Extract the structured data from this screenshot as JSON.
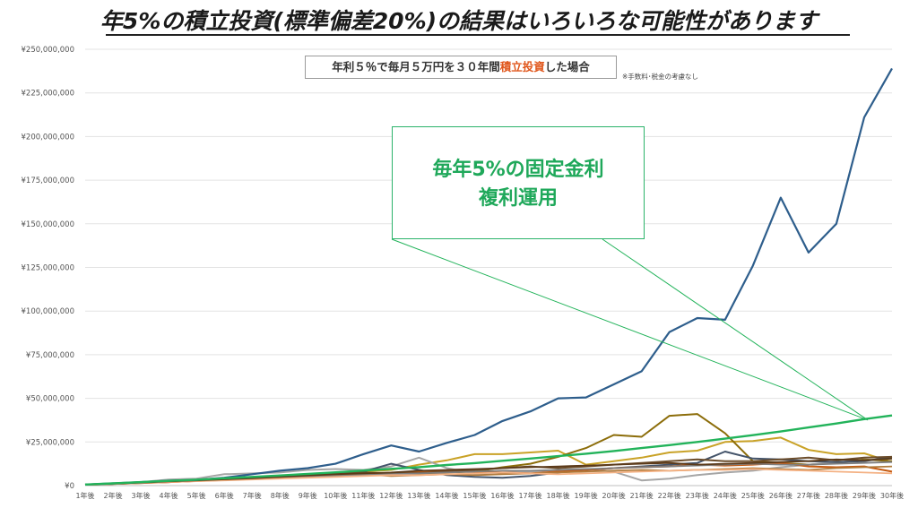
{
  "title": "年5%の積立投資(標準偏差20%)の結果はいろいろな可能性があります",
  "subtitle": {
    "part1": "年利５％で毎月５万円を３０年間",
    "highlight": "積立投資",
    "part2": "した場合"
  },
  "note": "※手数料･税金の考慮なし",
  "callout": {
    "line1": "毎年5%の固定金利",
    "line2": "複利運用"
  },
  "colors": {
    "highlight": "#e0561b",
    "fixed_rate_line": "#22b35a",
    "callout_text": "#1fa85a"
  },
  "chart_data": {
    "type": "line",
    "x": [
      "1年後",
      "2年後",
      "3年後",
      "4年後",
      "5年後",
      "6年後",
      "7年後",
      "8年後",
      "9年後",
      "10年後",
      "11年後",
      "12年後",
      "13年後",
      "14年後",
      "15年後",
      "16年後",
      "17年後",
      "18年後",
      "19年後",
      "20年後",
      "21年後",
      "22年後",
      "23年後",
      "24年後",
      "25年後",
      "26年後",
      "27年後",
      "28年後",
      "29年後",
      "30年後"
    ],
    "ylim": [
      0,
      250000000
    ],
    "yticks": [
      "¥0",
      "¥25,000,000",
      "¥50,000,000",
      "¥75,000,000",
      "¥100,000,000",
      "¥125,000,000",
      "¥150,000,000",
      "¥175,000,000",
      "¥200,000,000",
      "¥225,000,000",
      "¥250,000,000"
    ],
    "grid": true,
    "legend": "none",
    "series": [
      {
        "color": "#2e5e8c",
        "width": 2.2,
        "values": [
          0.6,
          1.3,
          2.0,
          2.8,
          3.3,
          4.5,
          6.5,
          8.5,
          10,
          12.5,
          18,
          23,
          19.5,
          24.5,
          29,
          37,
          42.5,
          50,
          50.5,
          58,
          65.5,
          88,
          96,
          95,
          126,
          165,
          133.5,
          150,
          211,
          239
        ]
      },
      {
        "color": "#22b35a",
        "width": 2.4,
        "values": [
          0.6,
          1.3,
          2.0,
          2.7,
          3.4,
          4.2,
          5.0,
          5.8,
          6.7,
          7.6,
          8.6,
          9.6,
          10.6,
          11.8,
          12.9,
          14.2,
          15.5,
          16.9,
          18.3,
          19.8,
          21.5,
          23.2,
          25.0,
          26.9,
          28.9,
          31.0,
          33.3,
          35.6,
          38.1,
          40.2
        ]
      },
      {
        "color": "#c9a227",
        "width": 2,
        "values": [
          0.5,
          1.1,
          1.8,
          2.2,
          2.8,
          3.8,
          4.5,
          5.5,
          6.5,
          7.2,
          8,
          9,
          12,
          14.5,
          18,
          18,
          19,
          20,
          12,
          14,
          16,
          19,
          20,
          25,
          25.5,
          27.5,
          20.5,
          18,
          18.5,
          13.5
        ]
      },
      {
        "color": "#8c6d0a",
        "width": 2,
        "values": [
          0.5,
          1.0,
          1.5,
          2.0,
          2.7,
          3.3,
          4.0,
          5.0,
          5.8,
          6.5,
          7.2,
          6.0,
          6.8,
          7.5,
          8.0,
          10.5,
          12.5,
          16.5,
          21.5,
          29,
          28,
          40,
          41,
          30,
          14,
          13,
          12,
          13,
          15,
          14
        ]
      },
      {
        "color": "#a6a6a6",
        "width": 2,
        "values": [
          0.6,
          1.2,
          2.0,
          3.5,
          4.0,
          6.5,
          7.0,
          7.5,
          9.0,
          9.5,
          9.0,
          11.0,
          16.0,
          10.0,
          7.0,
          7.5,
          8.0,
          9.0,
          9.5,
          8.0,
          3.0,
          4.0,
          6.0,
          7.5,
          8.5,
          10.5,
          12.0,
          13.5,
          14.5,
          15.5
        ]
      },
      {
        "color": "#44546a",
        "width": 2,
        "values": [
          0.5,
          1.0,
          1.6,
          2.2,
          2.7,
          3.3,
          3.8,
          4.3,
          5.0,
          5.6,
          8.0,
          12.5,
          9.0,
          6.0,
          5.0,
          4.5,
          5.5,
          7.5,
          9.0,
          10.0,
          11.0,
          12.0,
          13.0,
          19.5,
          15.5,
          15.0,
          14.0,
          13.5,
          14.0,
          16.5
        ]
      },
      {
        "color": "#c55a11",
        "width": 2,
        "values": [
          0.5,
          1.0,
          1.5,
          2.0,
          2.6,
          3.2,
          3.8,
          4.2,
          4.8,
          5.5,
          6.2,
          7.0,
          7.8,
          8.5,
          8.0,
          7.5,
          7.0,
          8.0,
          9.0,
          10.0,
          10.5,
          11.0,
          12.0,
          11.5,
          12.0,
          13.0,
          11.0,
          10.5,
          11.0,
          8.0
        ]
      },
      {
        "color": "#6b4c2a",
        "width": 2,
        "values": [
          0.6,
          1.2,
          1.8,
          2.4,
          3.2,
          4.0,
          4.8,
          5.5,
          6.2,
          7.0,
          7.5,
          7.0,
          7.2,
          8.0,
          9.0,
          10.0,
          11.0,
          10.0,
          11.0,
          12.0,
          13.0,
          14.0,
          15.0,
          14.0,
          14.0,
          15.0,
          16.0,
          14.5,
          16.0,
          16.5
        ]
      },
      {
        "color": "#b07b3c",
        "width": 1.8,
        "values": [
          0.5,
          1.1,
          1.7,
          2.3,
          2.9,
          3.5,
          4.2,
          4.8,
          5.5,
          6.0,
          6.5,
          5.5,
          6.0,
          6.5,
          6.0,
          6.5,
          7.0,
          7.5,
          8.0,
          8.5,
          9.0,
          8.5,
          9.0,
          9.5,
          10.0,
          9.5,
          9.0,
          10.0,
          10.5,
          11.0
        ]
      },
      {
        "color": "#7f7f7f",
        "width": 1.8,
        "values": [
          0.5,
          1.0,
          1.6,
          2.2,
          2.8,
          3.4,
          4.0,
          4.5,
          5.0,
          5.5,
          6.0,
          6.5,
          7.0,
          7.5,
          8.0,
          8.5,
          8.5,
          9.0,
          9.5,
          10.0,
          10.5,
          11.0,
          11.5,
          12.0,
          12.5,
          12.0,
          12.0,
          12.5,
          13.0,
          13.5
        ]
      },
      {
        "color": "#f4b183",
        "width": 1.8,
        "values": [
          0.5,
          1.0,
          1.5,
          2.0,
          2.5,
          3.0,
          3.5,
          4.0,
          4.5,
          5.0,
          5.5,
          6.0,
          6.0,
          6.5,
          7.0,
          7.5,
          7.0,
          6.5,
          7.0,
          7.5,
          8.0,
          8.5,
          9.0,
          9.0,
          9.5,
          9.0,
          8.5,
          8.0,
          7.5,
          7.0
        ]
      },
      {
        "color": "#5b3a1a",
        "width": 1.8,
        "values": [
          0.5,
          1.1,
          1.7,
          2.4,
          3.0,
          3.6,
          4.2,
          5.0,
          5.8,
          6.5,
          7.0,
          7.5,
          8.5,
          9.0,
          9.5,
          10.0,
          10.5,
          11.0,
          11.5,
          12.0,
          12.5,
          13.0,
          12.0,
          12.5,
          13.0,
          13.5,
          14.0,
          15.0,
          14.5,
          15.5
        ]
      }
    ]
  }
}
